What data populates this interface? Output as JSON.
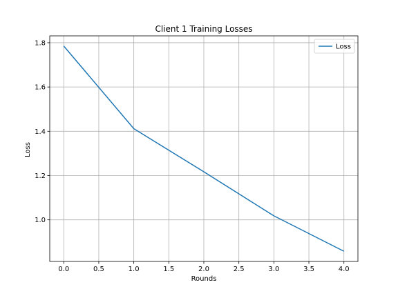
{
  "chart_data": {
    "type": "line",
    "title": "Client 1 Training Losses",
    "xlabel": "Rounds",
    "ylabel": "Loss",
    "x": [
      0,
      1,
      2,
      3,
      4
    ],
    "series": [
      {
        "name": "Loss",
        "values": [
          1.785,
          1.412,
          1.217,
          1.018,
          0.858
        ],
        "color": "#1f77b4"
      }
    ],
    "xlim": [
      -0.2,
      4.2
    ],
    "ylim": [
      0.812,
      1.831
    ],
    "xticks": [
      0.0,
      0.5,
      1.0,
      1.5,
      2.0,
      2.5,
      3.0,
      3.5,
      4.0
    ],
    "xtick_labels": [
      "0.0",
      "0.5",
      "1.0",
      "1.5",
      "2.0",
      "2.5",
      "3.0",
      "3.5",
      "4.0"
    ],
    "yticks": [
      1.0,
      1.2,
      1.4,
      1.6,
      1.8
    ],
    "ytick_labels": [
      "1.0",
      "1.2",
      "1.4",
      "1.6",
      "1.8"
    ],
    "grid": true,
    "legend_position": "top-right"
  }
}
